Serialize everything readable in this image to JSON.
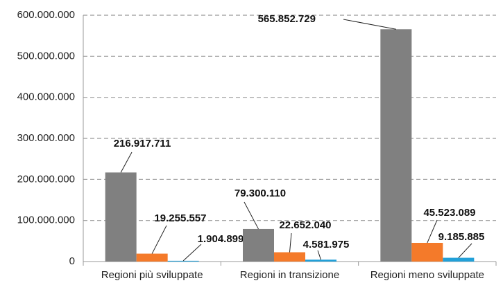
{
  "chart_data": {
    "type": "bar",
    "categories": [
      "Regioni più sviluppate",
      "Regioni in transizione",
      "Regioni meno sviluppate"
    ],
    "series": [
      {
        "color": "#808080",
        "values": [
          216917711,
          79300110,
          565852729
        ],
        "value_labels": [
          "216.917.711",
          "79.300.110",
          "565.852.729"
        ]
      },
      {
        "color": "#f47a2a",
        "values": [
          19255557,
          22652040,
          45523089
        ],
        "value_labels": [
          "19.255.557",
          "22.652.040",
          "45.523.089"
        ]
      },
      {
        "color": "#22a0d8",
        "values": [
          1904899,
          4581975,
          9185885
        ],
        "value_labels": [
          "1.904.899",
          "4.581.975",
          "9.185.885"
        ]
      }
    ],
    "ylim": [
      0,
      600000000
    ],
    "yticks": [
      0,
      {
        "value": 100000000,
        "label": "100.000.000"
      },
      {
        "value": 200000000,
        "label": "200.000.000"
      },
      {
        "value": 300000000,
        "label": "300.000.000"
      },
      {
        "value": 400000000,
        "label": "400.000.000"
      },
      {
        "value": 500000000,
        "label": "500.000.000"
      },
      {
        "value": 600000000,
        "label": "600.000.000"
      }
    ],
    "grid": true
  }
}
